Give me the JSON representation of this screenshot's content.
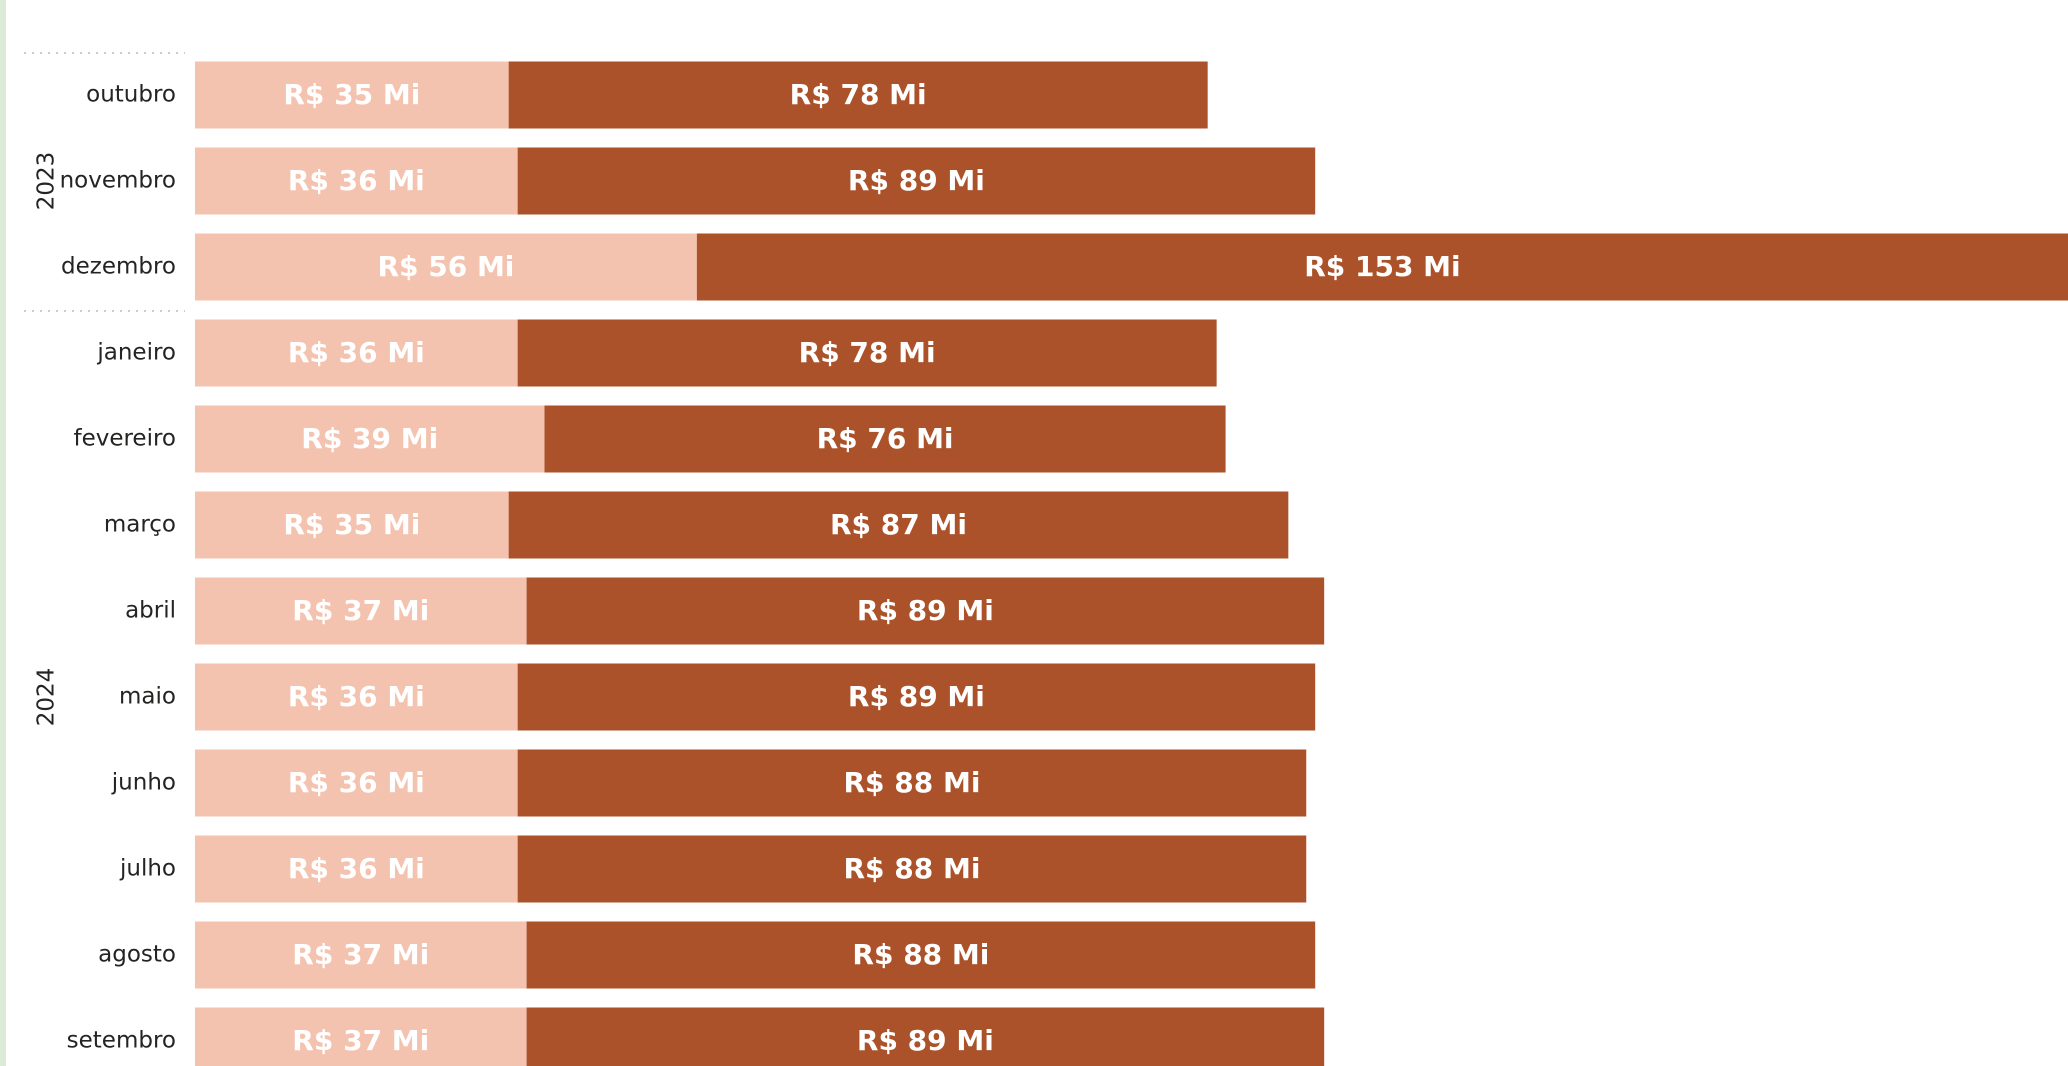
{
  "chart_data": {
    "type": "stacked-bar-horizontal",
    "groups": [
      {
        "label": "2023",
        "categories": [
          "outubro",
          "novembro",
          "dezembro"
        ]
      },
      {
        "label": "2024",
        "categories": [
          "janeiro",
          "fevereiro",
          "março",
          "abril",
          "maio",
          "junho",
          "julho",
          "agosto",
          "setembro"
        ]
      }
    ],
    "series": [
      {
        "color": "#f4c3b0",
        "values": [
          35,
          36,
          56,
          36,
          39,
          35,
          37,
          36,
          36,
          36,
          37,
          37
        ],
        "value_labels": [
          "R$ 35 Mi",
          "R$ 36 Mi",
          "R$ 56 Mi",
          "R$ 36 Mi",
          "R$ 39 Mi",
          "R$ 35 Mi",
          "R$ 37 Mi",
          "R$ 36 Mi",
          "R$ 36 Mi",
          "R$ 36 Mi",
          "R$ 37 Mi",
          "R$ 37 Mi"
        ]
      },
      {
        "color": "#ab522a",
        "values": [
          78,
          89,
          153,
          78,
          76,
          87,
          89,
          89,
          88,
          88,
          88,
          89
        ],
        "value_labels": [
          "R$ 78 Mi",
          "R$ 89 Mi",
          "R$ 153 Mi",
          "R$ 78 Mi",
          "R$ 76 Mi",
          "R$ 87 Mi",
          "R$ 89 Mi",
          "R$ 89 Mi",
          "R$ 88 Mi",
          "R$ 88 Mi",
          "R$ 88 Mi",
          "R$ 89 Mi"
        ]
      }
    ]
  }
}
